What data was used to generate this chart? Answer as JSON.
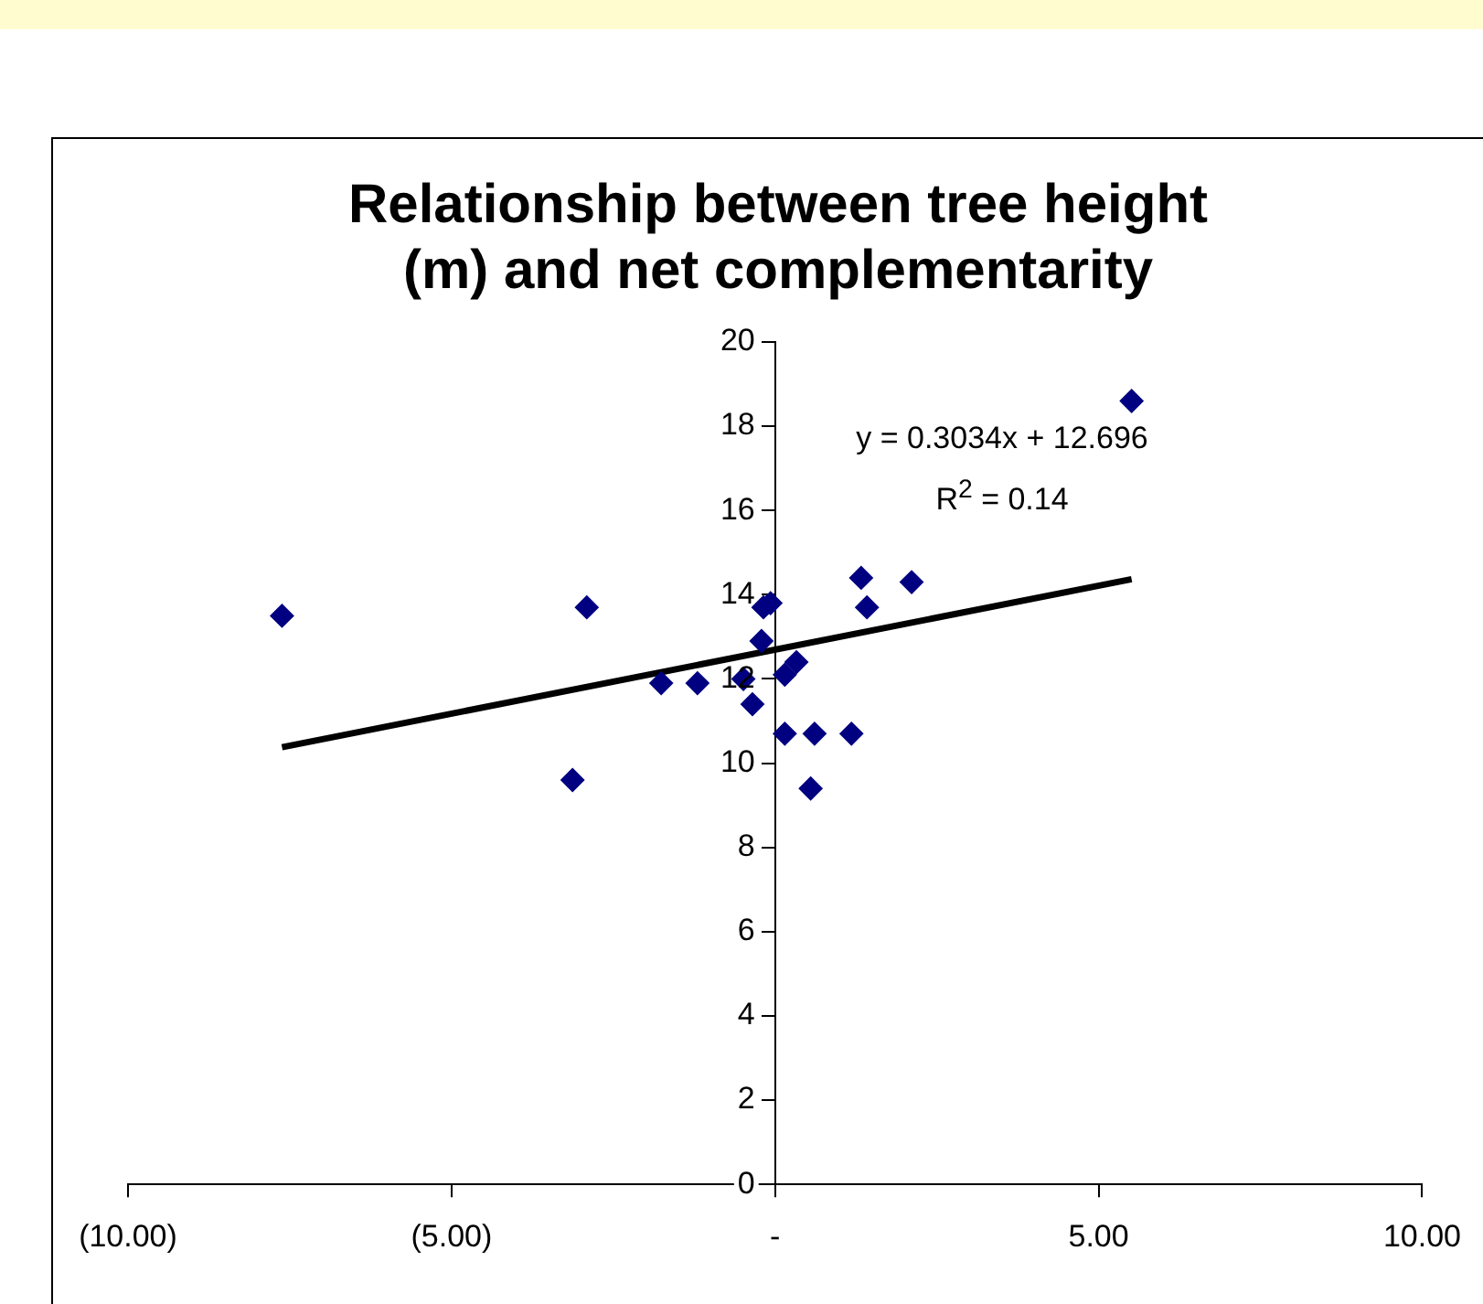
{
  "chart_data": {
    "type": "scatter",
    "title": "Relationship between tree height (m) and net complementarity",
    "xlim": [
      -10,
      10
    ],
    "xticks": [
      {
        "value": -10,
        "label": "(10.00)"
      },
      {
        "value": -5,
        "label": "(5.00)"
      },
      {
        "value": 0,
        "label": "-"
      },
      {
        "value": 5,
        "label": "5.00"
      },
      {
        "value": 10,
        "label": "10.00"
      }
    ],
    "ylim": [
      0,
      20
    ],
    "yticks": [
      0,
      2,
      4,
      6,
      8,
      10,
      12,
      14,
      16,
      18,
      20
    ],
    "grid": false,
    "legend": false,
    "marker": "diamond",
    "series": [
      {
        "type": "scatter",
        "color": "#000080",
        "x": [
          -7.62,
          -2.91,
          -3.13,
          -1.76,
          -1.2,
          -0.49,
          -0.35,
          -0.21,
          -0.18,
          -0.07,
          0.15,
          0.33,
          0.15,
          0.61,
          0.55,
          1.18,
          1.33,
          1.42,
          2.11,
          5.51
        ],
        "values": [
          13.5,
          13.7,
          9.6,
          11.9,
          11.9,
          12.0,
          11.4,
          12.9,
          13.7,
          13.8,
          12.1,
          12.4,
          10.7,
          10.7,
          9.4,
          10.7,
          14.4,
          13.7,
          14.3,
          18.6
        ]
      },
      {
        "type": "line",
        "color": "#000000",
        "marker": "none",
        "x": [
          -7.62,
          5.51
        ],
        "values": [
          10.38,
          14.37
        ]
      }
    ],
    "annotations": [
      "y = 0.3034x + 12.696",
      "R$^{2}$ = 0.14"
    ]
  }
}
